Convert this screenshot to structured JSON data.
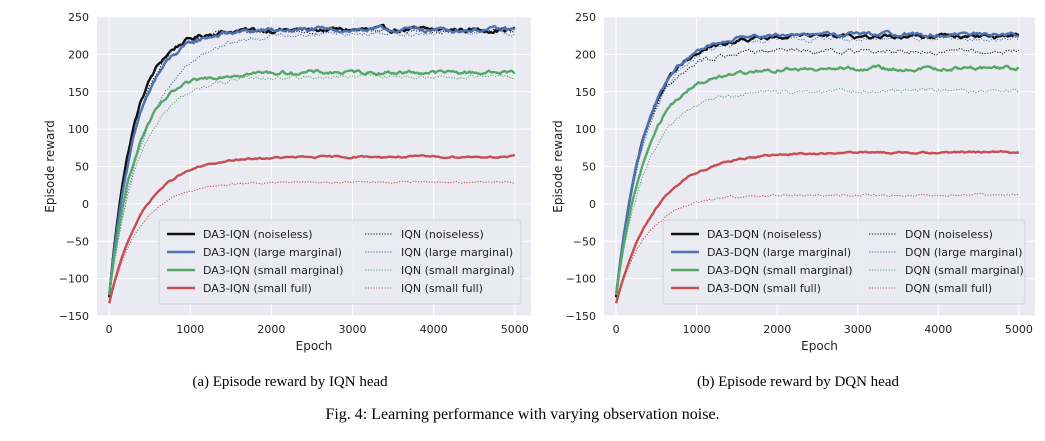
{
  "figure_caption": "Fig. 4: Learning performance with varying observation noise.",
  "colors": {
    "panel_bg": "#EAEAF2",
    "grid": "#FFFFFF",
    "black": "#111111",
    "blue": "#4C72B0",
    "green": "#55A868",
    "red": "#C44E52"
  },
  "chart_data": [
    {
      "type": "line",
      "caption": "(a) Episode reward by IQN head",
      "xlabel": "Epoch",
      "ylabel": "Episode reward",
      "xlim": [
        -150,
        5200
      ],
      "ylim": [
        -150,
        250
      ],
      "xticks": [
        0,
        1000,
        2000,
        3000,
        4000,
        5000
      ],
      "yticks": [
        -150,
        -100,
        -50,
        0,
        50,
        100,
        150,
        200,
        250
      ],
      "grid": true,
      "legend_placement": "lower-right, two columns",
      "series": [
        {
          "name": "DA3-IQN (noiseless)",
          "color": "black",
          "style": "solid",
          "start": -125,
          "plateau": 233,
          "tau": 300,
          "noise": 3
        },
        {
          "name": "DA3-IQN (large marginal)",
          "color": "blue",
          "style": "solid",
          "start": -122,
          "plateau": 233,
          "tau": 340,
          "noise": 3
        },
        {
          "name": "DA3-IQN (small marginal)",
          "color": "green",
          "style": "solid",
          "start": -122,
          "plateau": 176,
          "tau": 330,
          "noise": 2.5
        },
        {
          "name": "DA3-IQN (small full)",
          "color": "red",
          "style": "solid",
          "start": -133,
          "plateau": 63,
          "tau": 420,
          "noise": 1.2
        },
        {
          "name": "IQN (noiseless)",
          "color": "black",
          "style": "dotted",
          "start": -125,
          "plateau": 232,
          "tau": 320,
          "noise": 3
        },
        {
          "name": "IQN (large marginal)",
          "color": "blue",
          "style": "dotted",
          "start": -125,
          "plateau": 229,
          "tau": 460,
          "noise": 3
        },
        {
          "name": "IQN (small marginal)",
          "color": "green",
          "style": "dotted",
          "start": -122,
          "plateau": 170,
          "tau": 380,
          "noise": 2.5
        },
        {
          "name": "IQN (small full)",
          "color": "red",
          "style": "dotted",
          "start": -133,
          "plateau": 29,
          "tau": 380,
          "noise": 1.2
        }
      ]
    },
    {
      "type": "line",
      "caption": "(b) Episode reward by DQN head",
      "xlabel": "Epoch",
      "ylabel": "Episode reward",
      "xlim": [
        -150,
        5200
      ],
      "ylim": [
        -150,
        250
      ],
      "xticks": [
        0,
        1000,
        2000,
        3000,
        4000,
        5000
      ],
      "yticks": [
        -150,
        -100,
        -50,
        0,
        50,
        100,
        150,
        200,
        250
      ],
      "grid": true,
      "legend_placement": "lower-right, two columns",
      "series": [
        {
          "name": "DA3-DQN (noiseless)",
          "color": "black",
          "style": "solid",
          "start": -125,
          "plateau": 224,
          "tau": 360,
          "noise": 2.5
        },
        {
          "name": "DA3-DQN (large marginal)",
          "color": "blue",
          "style": "solid",
          "start": -122,
          "plateau": 227,
          "tau": 370,
          "noise": 2.5
        },
        {
          "name": "DA3-DQN (small marginal)",
          "color": "green",
          "style": "solid",
          "start": -122,
          "plateau": 181,
          "tau": 380,
          "noise": 2.5
        },
        {
          "name": "DA3-DQN (small full)",
          "color": "red",
          "style": "solid",
          "start": -133,
          "plateau": 69,
          "tau": 500,
          "noise": 1.2
        },
        {
          "name": "DQN (noiseless)",
          "color": "black",
          "style": "dotted",
          "start": -125,
          "plateau": 204,
          "tau": 330,
          "noise": 3
        },
        {
          "name": "DQN (large marginal)",
          "color": "blue",
          "style": "dotted",
          "start": -125,
          "plateau": 221,
          "tau": 380,
          "noise": 3
        },
        {
          "name": "DQN (small marginal)",
          "color": "green",
          "style": "dotted",
          "start": -122,
          "plateau": 151,
          "tau": 380,
          "noise": 2.5
        },
        {
          "name": "DQN (small full)",
          "color": "red",
          "style": "dotted",
          "start": -133,
          "plateau": 12,
          "tau": 380,
          "noise": 1.5
        }
      ]
    }
  ]
}
